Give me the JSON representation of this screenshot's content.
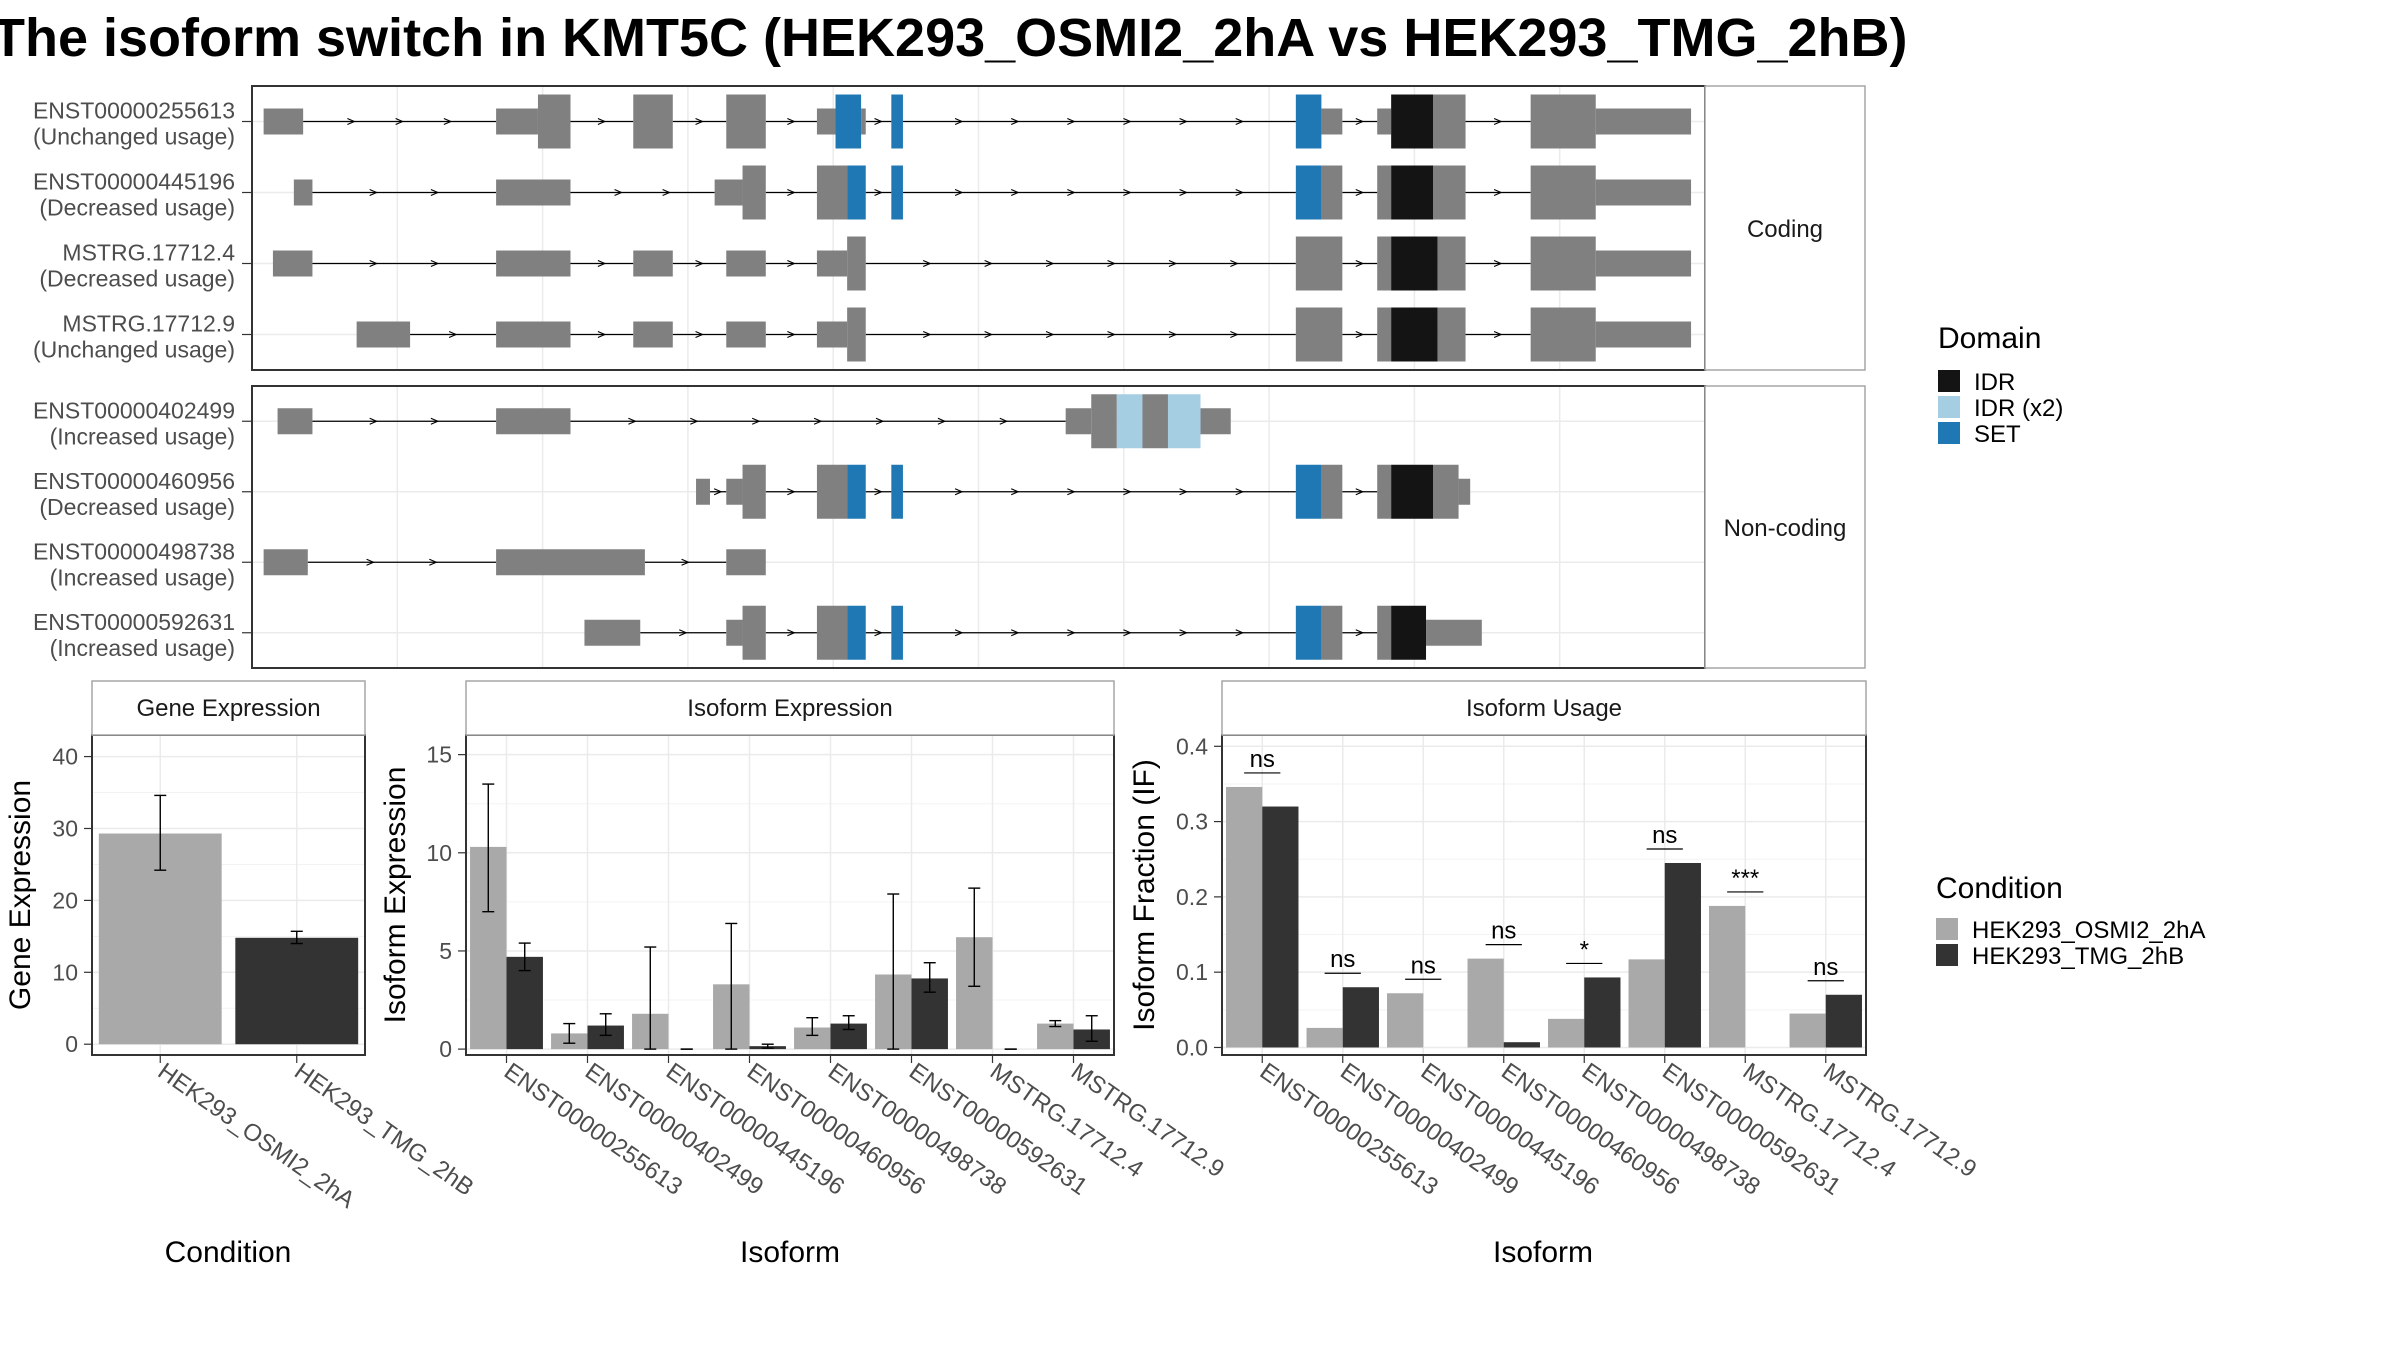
{
  "title": "The isoform switch in KMT5C (HEK293_OSMI2_2hA vs HEK293_TMG_2hB)",
  "colors": {
    "exon": "#808080",
    "panel_border": "#333333",
    "strip_border": "#a6a6a6",
    "grid": "#ebebeb",
    "cond_a": "#a9a9a9",
    "cond_b": "#333333",
    "domain_IDR": "#141414",
    "domain_IDR_x2": "#a6cee3",
    "domain_SET": "#1f78b4"
  },
  "transcripts": {
    "coding_label": "Coding",
    "noncoding_label": "Non-coding",
    "coding": [
      {
        "id": "ENST00000255613",
        "usage": "(Unchanged usage)",
        "exons": [
          [
            0.5,
            2.2,
            "u"
          ],
          [
            10.5,
            12.3,
            "u"
          ],
          [
            12.3,
            13.7,
            "c"
          ],
          [
            16.4,
            18.1,
            "c"
          ],
          [
            20.4,
            22.1,
            "c"
          ],
          [
            24.3,
            25.1,
            "u"
          ],
          [
            25.1,
            26.2,
            "SET"
          ],
          [
            26.2,
            26.4,
            "u"
          ],
          [
            27.5,
            28.0,
            "SET"
          ],
          [
            44.9,
            46.0,
            "SET"
          ],
          [
            46.0,
            46.9,
            "u"
          ],
          [
            48.4,
            49.0,
            "u"
          ],
          [
            49.0,
            50.8,
            "IDR"
          ],
          [
            50.8,
            52.2,
            "c"
          ],
          [
            55.0,
            57.8,
            "c"
          ],
          [
            57.8,
            61.9,
            "u"
          ]
        ],
        "introns": [
          [
            2.2,
            10.5
          ],
          [
            13.7,
            16.4
          ],
          [
            18.1,
            20.4
          ],
          [
            22.1,
            24.3
          ],
          [
            26.4,
            27.5
          ],
          [
            28.0,
            44.9
          ],
          [
            46.9,
            48.4
          ],
          [
            52.2,
            55.0
          ]
        ]
      },
      {
        "id": "ENST00000445196",
        "usage": "(Decreased usage)",
        "exons": [
          [
            1.8,
            2.6,
            "u"
          ],
          [
            10.5,
            13.7,
            "u"
          ],
          [
            19.9,
            21.1,
            "u"
          ],
          [
            21.1,
            22.1,
            "c"
          ],
          [
            24.3,
            25.6,
            "c"
          ],
          [
            25.6,
            26.4,
            "SET"
          ],
          [
            27.5,
            28.0,
            "SET"
          ],
          [
            44.9,
            46.0,
            "SET"
          ],
          [
            46.0,
            46.9,
            "c"
          ],
          [
            48.4,
            49.0,
            "c"
          ],
          [
            49.0,
            50.8,
            "IDR"
          ],
          [
            50.8,
            52.2,
            "c"
          ],
          [
            55.0,
            57.8,
            "c"
          ],
          [
            57.8,
            61.9,
            "u"
          ]
        ],
        "introns": [
          [
            2.6,
            10.5
          ],
          [
            13.7,
            19.9
          ],
          [
            22.1,
            24.3
          ],
          [
            26.4,
            27.5
          ],
          [
            28.0,
            44.9
          ],
          [
            46.9,
            48.4
          ],
          [
            52.2,
            55.0
          ]
        ]
      },
      {
        "id": "MSTRG.17712.4",
        "usage": "(Decreased usage)",
        "exons": [
          [
            0.9,
            2.6,
            "u"
          ],
          [
            10.5,
            13.7,
            "u"
          ],
          [
            16.4,
            18.1,
            "u"
          ],
          [
            20.4,
            22.1,
            "u"
          ],
          [
            24.3,
            25.6,
            "u"
          ],
          [
            25.6,
            26.4,
            "c"
          ],
          [
            44.9,
            46.9,
            "c"
          ],
          [
            48.4,
            49.0,
            "c"
          ],
          [
            49.0,
            51.0,
            "IDR"
          ],
          [
            51.0,
            52.2,
            "c"
          ],
          [
            55.0,
            57.8,
            "c"
          ],
          [
            57.8,
            61.9,
            "u"
          ]
        ],
        "introns": [
          [
            2.6,
            10.5
          ],
          [
            13.7,
            16.4
          ],
          [
            18.1,
            20.4
          ],
          [
            22.1,
            24.3
          ],
          [
            26.4,
            44.9
          ],
          [
            46.9,
            48.4
          ],
          [
            52.2,
            55.0
          ]
        ]
      },
      {
        "id": "MSTRG.17712.9",
        "usage": "(Unchanged usage)",
        "exons": [
          [
            4.5,
            6.8,
            "u"
          ],
          [
            10.5,
            13.7,
            "u"
          ],
          [
            16.4,
            18.1,
            "u"
          ],
          [
            20.4,
            22.1,
            "u"
          ],
          [
            24.3,
            25.6,
            "u"
          ],
          [
            25.6,
            26.4,
            "c"
          ],
          [
            44.9,
            46.9,
            "c"
          ],
          [
            48.4,
            49.0,
            "c"
          ],
          [
            49.0,
            51.0,
            "IDR"
          ],
          [
            51.0,
            52.2,
            "c"
          ],
          [
            55.0,
            57.8,
            "c"
          ],
          [
            57.8,
            61.9,
            "u"
          ]
        ],
        "introns": [
          [
            6.8,
            10.5
          ],
          [
            13.7,
            16.4
          ],
          [
            18.1,
            20.4
          ],
          [
            22.1,
            24.3
          ],
          [
            26.4,
            44.9
          ],
          [
            46.9,
            48.4
          ],
          [
            52.2,
            55.0
          ]
        ]
      }
    ],
    "noncoding": [
      {
        "id": "ENST00000402499",
        "usage": "(Increased usage)",
        "exons": [
          [
            1.1,
            2.6,
            "u"
          ],
          [
            10.5,
            13.7,
            "u"
          ],
          [
            35.0,
            36.1,
            "u"
          ],
          [
            36.1,
            37.2,
            "c"
          ],
          [
            37.2,
            38.3,
            "IDR_x2"
          ],
          [
            38.3,
            39.4,
            "c"
          ],
          [
            39.4,
            40.8,
            "IDR_x2"
          ],
          [
            40.8,
            42.1,
            "u"
          ]
        ],
        "introns": [
          [
            2.6,
            10.5
          ],
          [
            13.7,
            35.0
          ]
        ]
      },
      {
        "id": "ENST00000460956",
        "usage": "(Decreased usage)",
        "exons": [
          [
            19.1,
            19.7,
            "u"
          ],
          [
            20.4,
            21.1,
            "u"
          ],
          [
            21.1,
            22.1,
            "c"
          ],
          [
            24.3,
            25.6,
            "c"
          ],
          [
            25.6,
            26.4,
            "SET"
          ],
          [
            27.5,
            28.0,
            "SET"
          ],
          [
            44.9,
            46.0,
            "SET"
          ],
          [
            46.0,
            46.9,
            "c"
          ],
          [
            48.4,
            49.0,
            "c"
          ],
          [
            49.0,
            50.8,
            "IDR"
          ],
          [
            50.8,
            51.9,
            "c"
          ],
          [
            51.9,
            52.4,
            "u"
          ]
        ],
        "introns": [
          [
            19.7,
            20.4
          ],
          [
            22.1,
            24.3
          ],
          [
            26.4,
            27.5
          ],
          [
            28.0,
            44.9
          ],
          [
            46.9,
            48.4
          ]
        ]
      },
      {
        "id": "ENST00000498738",
        "usage": "(Increased usage)",
        "exons": [
          [
            0.5,
            2.4,
            "u"
          ],
          [
            10.5,
            16.9,
            "u"
          ],
          [
            20.4,
            22.1,
            "u"
          ]
        ],
        "introns": [
          [
            2.4,
            10.5
          ],
          [
            16.9,
            20.4
          ]
        ]
      },
      {
        "id": "ENST00000592631",
        "usage": "(Increased usage)",
        "exons": [
          [
            14.3,
            16.7,
            "u"
          ],
          [
            20.4,
            21.1,
            "u"
          ],
          [
            21.1,
            22.1,
            "c"
          ],
          [
            24.3,
            25.6,
            "c"
          ],
          [
            25.6,
            26.4,
            "SET"
          ],
          [
            27.5,
            28.0,
            "SET"
          ],
          [
            44.9,
            46.0,
            "SET"
          ],
          [
            46.0,
            46.9,
            "c"
          ],
          [
            48.4,
            49.0,
            "c"
          ],
          [
            49.0,
            50.5,
            "IDR"
          ],
          [
            50.5,
            52.9,
            "u"
          ]
        ],
        "introns": [
          [
            16.7,
            20.4
          ],
          [
            22.1,
            24.3
          ],
          [
            26.4,
            27.5
          ],
          [
            28.0,
            44.9
          ],
          [
            46.9,
            48.4
          ]
        ]
      }
    ]
  },
  "domain_legend": {
    "title": "Domain",
    "items": [
      {
        "key": "IDR",
        "label": "IDR",
        "color": "#141414"
      },
      {
        "key": "IDR_x2",
        "label": "IDR (x2)",
        "color": "#a6cee3"
      },
      {
        "key": "SET",
        "label": "SET",
        "color": "#1f78b4"
      }
    ]
  },
  "condition_legend": {
    "title": "Condition",
    "items": [
      {
        "label": "HEK293_OSMI2_2hA",
        "color": "#a9a9a9"
      },
      {
        "label": "HEK293_TMG_2hB",
        "color": "#333333"
      }
    ]
  },
  "chart_data": [
    {
      "type": "bar",
      "strip": "Gene Expression",
      "xlabel": "Condition",
      "ylabel": "Gene Expression",
      "ylim": [
        -1.5,
        43
      ],
      "yticks": [
        0,
        10,
        20,
        30,
        40
      ],
      "categories": [
        "HEK293_OSMI2_2hA",
        "HEK293_TMG_2hB"
      ],
      "values": [
        29.3,
        14.8
      ],
      "err_low": [
        24.2,
        14.0
      ],
      "err_high": [
        34.6,
        15.7
      ]
    },
    {
      "type": "bar",
      "strip": "Isoform Expression",
      "xlabel": "Isoform",
      "ylabel": "Isoform Expression",
      "ylim": [
        -0.3,
        16
      ],
      "yticks": [
        0,
        5,
        10,
        15
      ],
      "categories": [
        "ENST00000255613",
        "ENST00000402499",
        "ENST00000445196",
        "ENST00000460956",
        "ENST00000498738",
        "ENST00000592631",
        "MSTRG.17712.4",
        "MSTRG.17712.9"
      ],
      "series": [
        {
          "name": "HEK293_OSMI2_2hA",
          "values": [
            10.3,
            0.8,
            1.8,
            3.3,
            1.1,
            3.8,
            5.7,
            1.3
          ],
          "err_low": [
            7.0,
            0.3,
            0.0,
            0.0,
            0.7,
            0.0,
            3.2,
            1.15
          ],
          "err_high": [
            13.5,
            1.3,
            5.2,
            6.4,
            1.6,
            7.9,
            8.2,
            1.45
          ]
        },
        {
          "name": "HEK293_TMG_2hB",
          "values": [
            4.7,
            1.2,
            0.0,
            0.15,
            1.3,
            3.6,
            0.0,
            1.0
          ],
          "err_low": [
            4.0,
            0.7,
            0.0,
            0.05,
            1.0,
            2.9,
            0.0,
            0.4
          ],
          "err_high": [
            5.4,
            1.8,
            0.0,
            0.25,
            1.7,
            4.4,
            0.0,
            1.7
          ]
        }
      ]
    },
    {
      "type": "bar",
      "strip": "Isoform Usage",
      "xlabel": "Isoform",
      "ylabel": "Isoform Fraction (IF)",
      "ylim": [
        -0.01,
        0.415
      ],
      "yticks": [
        0.0,
        0.1,
        0.2,
        0.3,
        0.4
      ],
      "categories": [
        "ENST00000255613",
        "ENST00000402499",
        "ENST00000445196",
        "ENST00000460956",
        "ENST00000498738",
        "ENST00000592631",
        "MSTRG.17712.4",
        "MSTRG.17712.9"
      ],
      "series": [
        {
          "name": "HEK293_OSMI2_2hA",
          "values": [
            0.346,
            0.026,
            0.072,
            0.118,
            0.038,
            0.117,
            0.188,
            0.045
          ]
        },
        {
          "name": "HEK293_TMG_2hB",
          "values": [
            0.32,
            0.08,
            0.0,
            0.007,
            0.093,
            0.245,
            0.0,
            0.07
          ]
        }
      ],
      "significance": [
        "ns",
        "ns",
        "ns",
        "ns",
        "*",
        "ns",
        "***",
        "ns"
      ]
    }
  ]
}
